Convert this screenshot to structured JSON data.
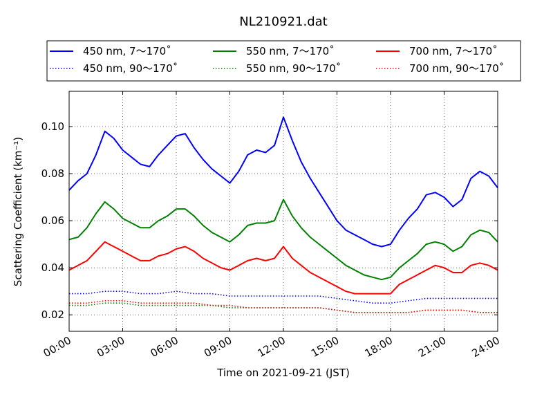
{
  "chart_data": {
    "type": "line",
    "title": "NL210921.dat",
    "xlabel": "Time on 2021-09-21 (JST)",
    "ylabel": "Scattering Coefficient (km⁻¹)",
    "x_range_hours": [
      0,
      24
    ],
    "xlim": [
      "2021-09-21 00:00",
      "2021-09-22 00:00"
    ],
    "ylim": [
      0.013,
      0.115
    ],
    "x_ticks": [
      {
        "hour": 0,
        "label": "00:00"
      },
      {
        "hour": 3,
        "label": "03:00"
      },
      {
        "hour": 6,
        "label": "06:00"
      },
      {
        "hour": 9,
        "label": "09:00"
      },
      {
        "hour": 12,
        "label": "12:00"
      },
      {
        "hour": 15,
        "label": "15:00"
      },
      {
        "hour": 18,
        "label": "18:00"
      },
      {
        "hour": 21,
        "label": "21:00"
      },
      {
        "hour": 24,
        "label": "24:00"
      }
    ],
    "y_ticks": [
      {
        "value": 0.02,
        "label": "0.02"
      },
      {
        "value": 0.04,
        "label": "0.04"
      },
      {
        "value": 0.06,
        "label": "0.06"
      },
      {
        "value": 0.08,
        "label": "0.08"
      },
      {
        "value": 0.1,
        "label": "0.10"
      }
    ],
    "grid": true,
    "legend_position": "top",
    "series": [
      {
        "name": "450 nm, 7～170˚",
        "color": "#0000ff",
        "style": "solid",
        "x": [
          0,
          0.5,
          1,
          1.5,
          2,
          2.5,
          3,
          3.5,
          4,
          4.5,
          5,
          5.5,
          6,
          6.5,
          7,
          7.5,
          8,
          8.5,
          9,
          9.5,
          10,
          10.5,
          11,
          11.5,
          12,
          12.5,
          13,
          13.5,
          14,
          14.5,
          15,
          15.5,
          16,
          16.5,
          17,
          17.5,
          18,
          18.5,
          19,
          19.5,
          20,
          20.5,
          21,
          21.5,
          22,
          22.5,
          23,
          23.5,
          24
        ],
        "y": [
          0.073,
          0.077,
          0.08,
          0.088,
          0.098,
          0.095,
          0.09,
          0.087,
          0.084,
          0.083,
          0.088,
          0.092,
          0.096,
          0.097,
          0.091,
          0.086,
          0.082,
          0.079,
          0.076,
          0.081,
          0.088,
          0.09,
          0.089,
          0.092,
          0.104,
          0.094,
          0.085,
          0.078,
          0.072,
          0.066,
          0.06,
          0.056,
          0.054,
          0.052,
          0.05,
          0.049,
          0.05,
          0.056,
          0.061,
          0.065,
          0.071,
          0.072,
          0.07,
          0.066,
          0.069,
          0.078,
          0.081,
          0.079,
          0.074
        ]
      },
      {
        "name": "550 nm, 7～170˚",
        "color": "#008000",
        "style": "solid",
        "x": [
          0,
          0.5,
          1,
          1.5,
          2,
          2.5,
          3,
          3.5,
          4,
          4.5,
          5,
          5.5,
          6,
          6.5,
          7,
          7.5,
          8,
          8.5,
          9,
          9.5,
          10,
          10.5,
          11,
          11.5,
          12,
          12.5,
          13,
          13.5,
          14,
          14.5,
          15,
          15.5,
          16,
          16.5,
          17,
          17.5,
          18,
          18.5,
          19,
          19.5,
          20,
          20.5,
          21,
          21.5,
          22,
          22.5,
          23,
          23.5,
          24
        ],
        "y": [
          0.052,
          0.053,
          0.057,
          0.063,
          0.068,
          0.065,
          0.061,
          0.059,
          0.057,
          0.057,
          0.06,
          0.062,
          0.065,
          0.065,
          0.062,
          0.058,
          0.055,
          0.053,
          0.051,
          0.054,
          0.058,
          0.059,
          0.059,
          0.06,
          0.069,
          0.062,
          0.057,
          0.053,
          0.05,
          0.047,
          0.044,
          0.041,
          0.039,
          0.037,
          0.036,
          0.035,
          0.036,
          0.04,
          0.043,
          0.046,
          0.05,
          0.051,
          0.05,
          0.047,
          0.049,
          0.054,
          0.056,
          0.055,
          0.051
        ]
      },
      {
        "name": "700 nm, 7～170˚",
        "color": "#ff0000",
        "style": "solid",
        "x": [
          0,
          0.5,
          1,
          1.5,
          2,
          2.5,
          3,
          3.5,
          4,
          4.5,
          5,
          5.5,
          6,
          6.5,
          7,
          7.5,
          8,
          8.5,
          9,
          9.5,
          10,
          10.5,
          11,
          11.5,
          12,
          12.5,
          13,
          13.5,
          14,
          14.5,
          15,
          15.5,
          16,
          16.5,
          17,
          17.5,
          18,
          18.5,
          19,
          19.5,
          20,
          20.5,
          21,
          21.5,
          22,
          22.5,
          23,
          23.5,
          24
        ],
        "y": [
          0.039,
          0.041,
          0.043,
          0.047,
          0.051,
          0.049,
          0.047,
          0.045,
          0.043,
          0.043,
          0.045,
          0.046,
          0.048,
          0.049,
          0.047,
          0.044,
          0.042,
          0.04,
          0.039,
          0.041,
          0.043,
          0.044,
          0.043,
          0.044,
          0.049,
          0.044,
          0.041,
          0.038,
          0.036,
          0.034,
          0.032,
          0.03,
          0.029,
          0.029,
          0.029,
          0.029,
          0.029,
          0.033,
          0.035,
          0.037,
          0.039,
          0.041,
          0.04,
          0.038,
          0.038,
          0.041,
          0.042,
          0.041,
          0.039
        ]
      },
      {
        "name": "450 nm, 90～170˚",
        "color": "#0000ff",
        "style": "dotted",
        "x": [
          0,
          1,
          2,
          3,
          4,
          5,
          6,
          7,
          8,
          9,
          10,
          11,
          12,
          13,
          14,
          15,
          16,
          17,
          18,
          19,
          20,
          21,
          22,
          23,
          24
        ],
        "y": [
          0.029,
          0.029,
          0.03,
          0.03,
          0.029,
          0.029,
          0.03,
          0.029,
          0.029,
          0.028,
          0.028,
          0.028,
          0.028,
          0.028,
          0.028,
          0.027,
          0.026,
          0.025,
          0.025,
          0.026,
          0.027,
          0.027,
          0.027,
          0.027,
          0.027
        ]
      },
      {
        "name": "550 nm, 90～170˚",
        "color": "#008000",
        "style": "dotted",
        "x": [
          0,
          1,
          2,
          3,
          4,
          5,
          6,
          7,
          8,
          9,
          10,
          11,
          12,
          13,
          14,
          15,
          16,
          17,
          18,
          19,
          20,
          21,
          22,
          23,
          24
        ],
        "y": [
          0.024,
          0.024,
          0.025,
          0.025,
          0.024,
          0.024,
          0.024,
          0.024,
          0.024,
          0.023,
          0.023,
          0.023,
          0.023,
          0.023,
          0.023,
          0.022,
          0.021,
          0.021,
          0.021,
          0.021,
          0.022,
          0.022,
          0.022,
          0.021,
          0.021
        ]
      },
      {
        "name": "700 nm, 90～170˚",
        "color": "#ff0000",
        "style": "dotted",
        "x": [
          0,
          1,
          2,
          3,
          4,
          5,
          6,
          7,
          8,
          9,
          10,
          11,
          12,
          13,
          14,
          15,
          16,
          17,
          18,
          19,
          20,
          21,
          22,
          23,
          24
        ],
        "y": [
          0.025,
          0.025,
          0.026,
          0.026,
          0.025,
          0.025,
          0.025,
          0.025,
          0.024,
          0.024,
          0.023,
          0.023,
          0.023,
          0.023,
          0.023,
          0.022,
          0.021,
          0.021,
          0.021,
          0.021,
          0.022,
          0.022,
          0.022,
          0.021,
          0.021
        ]
      }
    ]
  }
}
